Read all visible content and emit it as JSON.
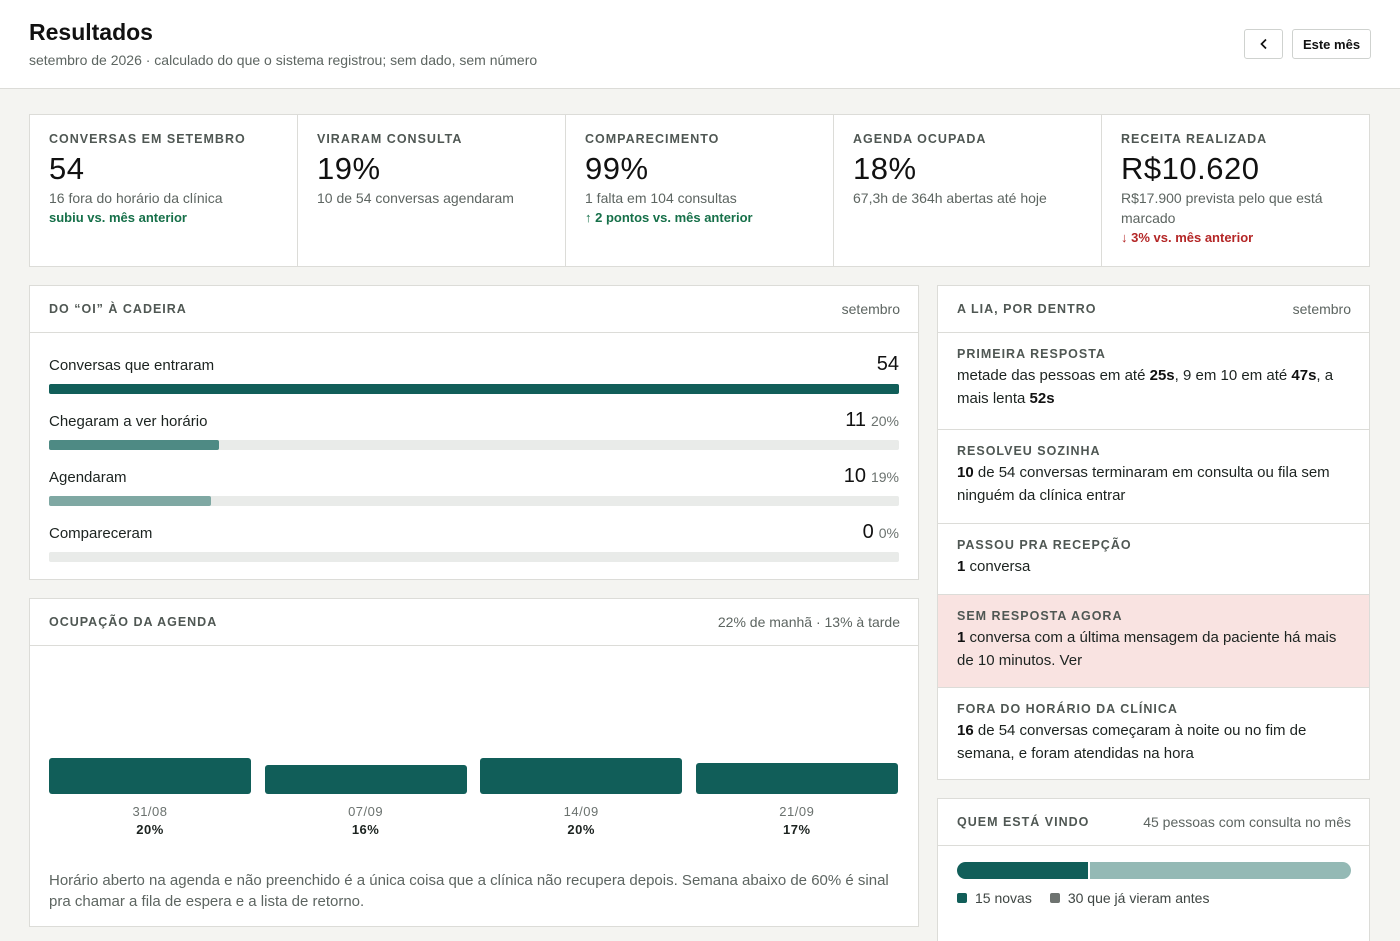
{
  "header": {
    "title": "Resultados",
    "subtitle": "setembro de 2026 · calculado do que o sistema registrou; sem dado, sem número",
    "prev_icon": "chevron-left-icon",
    "period_button": "Este mês"
  },
  "kpis": [
    {
      "label": "Conversas em setembro",
      "value": "54",
      "detail": "16 fora do horário da clínica",
      "delta": "subiu vs. mês anterior",
      "delta_dir": "up"
    },
    {
      "label": "Viraram consulta",
      "value": "19%",
      "detail": "10 de 54 conversas agendaram",
      "delta": "",
      "delta_dir": ""
    },
    {
      "label": "Comparecimento",
      "value": "99%",
      "detail": "1 falta em 104 consultas",
      "delta": "↑ 2 pontos vs. mês anterior",
      "delta_dir": "up"
    },
    {
      "label": "Agenda ocupada",
      "value": "18%",
      "detail": "67,3h de 364h abertas até hoje",
      "delta": "",
      "delta_dir": ""
    },
    {
      "label": "Receita realizada",
      "value": "R$10.620",
      "detail": "R$17.900 prevista pelo que está marcado",
      "delta": "↓ 3% vs. mês anterior",
      "delta_dir": "down"
    }
  ],
  "funnel": {
    "title": "Do “oi” à cadeira",
    "meta": "setembro",
    "steps": [
      {
        "label": "Conversas que entraram",
        "value": "54",
        "pct": "",
        "fill": 1.0,
        "color": "#115e59"
      },
      {
        "label": "Chegaram a ver horário",
        "value": "11",
        "pct": "20%",
        "fill": 0.2,
        "color": "#4e8a84"
      },
      {
        "label": "Agendaram",
        "value": "10",
        "pct": "19%",
        "fill": 0.19,
        "color": "#7fa8a3"
      },
      {
        "label": "Compareceram",
        "value": "0",
        "pct": "0%",
        "fill": 0.0,
        "color": "#7fa8a3"
      }
    ]
  },
  "occupancy": {
    "title": "Ocupação da agenda",
    "meta": "22% de manhã · 13% à tarde",
    "chart_data": {
      "type": "bar",
      "categories": [
        "31/08",
        "07/09",
        "14/09",
        "21/09"
      ],
      "values": [
        20,
        16,
        20,
        17
      ],
      "labels": [
        "20%",
        "16%",
        "20%",
        "17%"
      ],
      "ylim": [
        0,
        100
      ]
    },
    "note": "Horário aberto na agenda e não preenchido é a única coisa que a clínica não recupera depois. Semana abaixo de 60% é sinal pra chamar a fila de espera e a lista de retorno."
  },
  "lia": {
    "title": "A Lia, por dentro",
    "meta": "setembro",
    "first_response": {
      "label": "Primeira resposta",
      "t1": "metade das pessoas em até ",
      "v1": "25s",
      "t2": ", 9 em 10 em até ",
      "v2": "47s",
      "t3": ", a mais lenta ",
      "v3": "52s"
    },
    "solved_alone": {
      "label": "Resolveu sozinha",
      "v1": "10",
      "t1": " de 54 conversas terminaram em consulta ou fila sem ninguém da clínica entrar"
    },
    "handoff": {
      "label": "Passou pra recepção",
      "v1": "1",
      "t1": " conversa"
    },
    "no_reply": {
      "label": "Sem resposta agora",
      "v1": "1",
      "t1": " conversa com a última mensagem da paciente há mais de 10 minutos. Ver"
    },
    "after_hours": {
      "label": "Fora do horário da clínica",
      "v1": "16",
      "t1": " de 54 conversas começaram à noite ou no fim de semana, e foram atendidas na hora"
    }
  },
  "who": {
    "title": "Quem está vindo",
    "meta": "45 pessoas com consulta no mês",
    "new_count": 15,
    "returning_count": 30,
    "legend_new": "15 novas",
    "legend_returning": "30 que já vieram antes",
    "color_new": "#115e59",
    "color_returning": "#94b9b5"
  }
}
